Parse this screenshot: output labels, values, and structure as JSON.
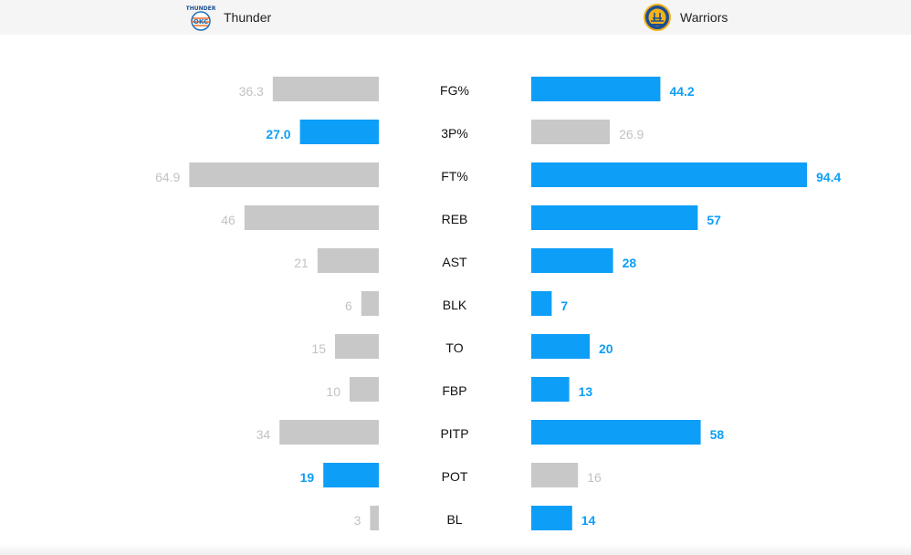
{
  "teams": {
    "left": {
      "name": "Thunder",
      "logo_icon": "thunder-logo-icon"
    },
    "right": {
      "name": "Warriors",
      "logo_icon": "warriors-logo-icon"
    }
  },
  "colors": {
    "highlight": "#0d9ef7",
    "muted_bar": "#c8c8c8",
    "muted_text": "#c2c2c2",
    "label_text": "#111111"
  },
  "chart_data": {
    "type": "bar",
    "categories": [
      "FG%",
      "3P%",
      "FT%",
      "REB",
      "AST",
      "BLK",
      "TO",
      "FBP",
      "PITP",
      "POT",
      "BL"
    ],
    "series": [
      {
        "name": "Thunder",
        "values": [
          36.3,
          27.0,
          64.9,
          46,
          21,
          6,
          15,
          10,
          34,
          19,
          3
        ],
        "labels": [
          "36.3",
          "27.0",
          "64.9",
          "46",
          "21",
          "6",
          "15",
          "10",
          "34",
          "19",
          "3"
        ]
      },
      {
        "name": "Warriors",
        "values": [
          44.2,
          26.9,
          94.4,
          57,
          28,
          7,
          20,
          13,
          58,
          16,
          14
        ],
        "labels": [
          "44.2",
          "26.9",
          "94.4",
          "57",
          "28",
          "7",
          "20",
          "13",
          "58",
          "16",
          "14"
        ]
      }
    ],
    "highlight": [
      "right",
      "left",
      "right",
      "right",
      "right",
      "right",
      "right",
      "right",
      "right",
      "left",
      "right"
    ]
  }
}
